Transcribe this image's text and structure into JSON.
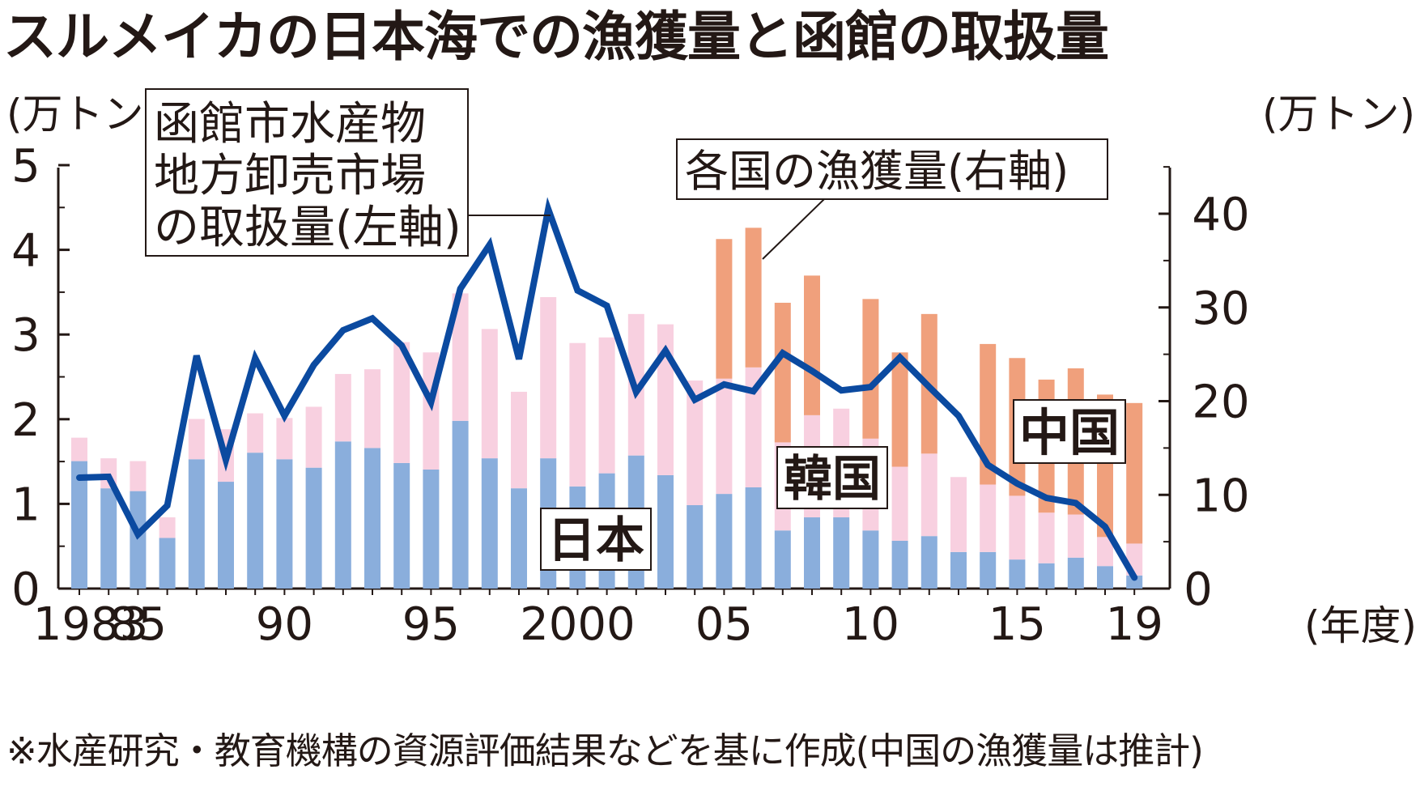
{
  "title": "スルメイカの日本海での漁獲量と函館の取扱量",
  "note": "※水産研究・教育機構の資源評価結果などを基に作成(中国の漁獲量は推計)",
  "chart_data": {
    "type": "bar+line",
    "left_axis": {
      "unit": "(万トン)",
      "ylim": [
        0,
        5
      ],
      "ticks": [
        0,
        1,
        2,
        3,
        4,
        5
      ]
    },
    "right_axis": {
      "unit": "(万トン)",
      "ylim": [
        0,
        45
      ],
      "ticks": [
        0,
        10,
        20,
        30,
        40
      ]
    },
    "x_axis_unit": "(年度)",
    "x": [
      1983,
      1984,
      1985,
      1986,
      1987,
      1988,
      1989,
      1990,
      1991,
      1992,
      1993,
      1994,
      1995,
      1996,
      1997,
      1998,
      1999,
      2000,
      2001,
      2002,
      2003,
      2004,
      2005,
      2006,
      2007,
      2008,
      2009,
      2010,
      2011,
      2012,
      2013,
      2014,
      2015,
      2016,
      2017,
      2018,
      2019
    ],
    "x_tick_labels": [
      {
        "year": 1983,
        "label": "1983"
      },
      {
        "year": 1985,
        "label": "85"
      },
      {
        "year": 1990,
        "label": "90"
      },
      {
        "year": 1995,
        "label": "95"
      },
      {
        "year": 2000,
        "label": "2000"
      },
      {
        "year": 2005,
        "label": "05"
      },
      {
        "year": 2010,
        "label": "10"
      },
      {
        "year": 2015,
        "label": "15"
      },
      {
        "year": 2019,
        "label": "19"
      }
    ],
    "bar_series": [
      {
        "name": "日本",
        "axis": "right",
        "color": "#8aaedc",
        "values": [
          13.6,
          10.7,
          10.4,
          5.4,
          13.8,
          11.4,
          14.5,
          13.8,
          12.9,
          15.7,
          15.0,
          13.4,
          12.7,
          17.9,
          13.9,
          10.7,
          13.9,
          10.9,
          12.3,
          14.2,
          12.1,
          8.9,
          10.1,
          10.8,
          6.2,
          7.6,
          7.6,
          6.2,
          5.1,
          5.6,
          3.9,
          3.9,
          3.1,
          2.7,
          3.3,
          2.4,
          1.4
        ]
      },
      {
        "name": "韓国",
        "axis": "right",
        "color": "#f8d0e0",
        "values": [
          2.5,
          3.2,
          3.2,
          2.2,
          4.3,
          5.6,
          4.2,
          4.4,
          6.5,
          7.2,
          8.4,
          12.9,
          12.5,
          13.6,
          13.8,
          10.3,
          17.2,
          15.3,
          14.5,
          15.1,
          16.1,
          13.3,
          12.3,
          12.8,
          9.4,
          10.9,
          11.6,
          9.8,
          7.9,
          8.8,
          8.0,
          7.2,
          6.8,
          5.4,
          4.6,
          3.1,
          3.4
        ]
      },
      {
        "name": "中国",
        "axis": "right",
        "color": "#f0a07c",
        "values": [
          0,
          0,
          0,
          0,
          0,
          0,
          0,
          0,
          0,
          0,
          0,
          0,
          0,
          0,
          0,
          0,
          0,
          0,
          0,
          0,
          0,
          0,
          14.9,
          14.9,
          14.9,
          14.9,
          0,
          14.9,
          12.2,
          14.9,
          0,
          15.0,
          14.7,
          14.2,
          15.6,
          15.2,
          15.0
        ]
      }
    ],
    "line_series": [
      {
        "name": "函館市水産物地方卸売市場の取扱量(左軸)",
        "axis": "left",
        "color": "#0b4aa0",
        "values": [
          1.31,
          1.32,
          0.64,
          0.98,
          2.75,
          1.52,
          2.72,
          2.04,
          2.64,
          3.05,
          3.19,
          2.87,
          2.2,
          3.54,
          4.06,
          2.71,
          4.48,
          3.52,
          3.34,
          2.32,
          2.81,
          2.23,
          2.41,
          2.33,
          2.78,
          2.57,
          2.34,
          2.38,
          2.73,
          2.38,
          2.04,
          1.46,
          1.24,
          1.07,
          1.01,
          0.73,
          0.13
        ]
      }
    ],
    "callouts": {
      "line": "函館市水産物\n地方卸売市場\nの取扱量(左軸)",
      "bars": "各国の漁獲量(右軸)"
    }
  }
}
